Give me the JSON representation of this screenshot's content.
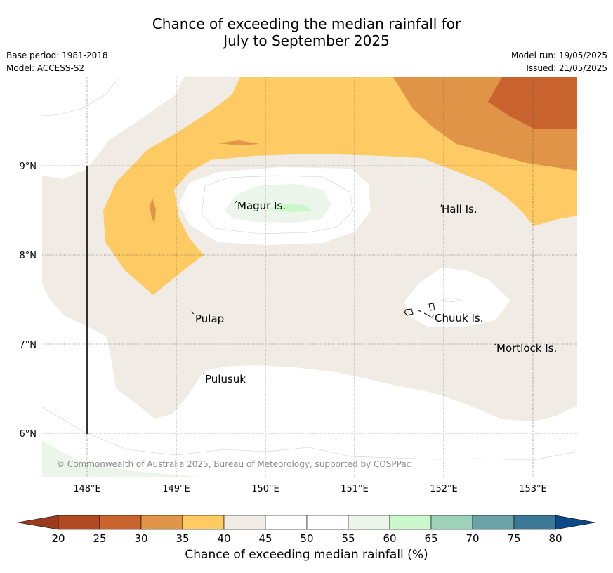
{
  "title": {
    "line1": "Chance of exceeding the median rainfall for",
    "line2": "July to September 2025"
  },
  "meta": {
    "base_period": "Base period: 1981-2018",
    "model": "Model: ACCESS-S2",
    "model_run": "Model run: 19/05/2025",
    "issued": "Issued: 21/05/2025"
  },
  "copyright": "© Commonwealth of Australia 2025, Bureau of Meteorology, supported by COSPPac",
  "axes": {
    "lon_ticks": [
      "148°E",
      "149°E",
      "150°E",
      "151°E",
      "152°E",
      "153°E"
    ],
    "lat_ticks": [
      "9°N",
      "8°N",
      "7°N",
      "6°N"
    ]
  },
  "places": [
    {
      "label": "Magur Is."
    },
    {
      "label": "Hall Is."
    },
    {
      "label": "Pulap"
    },
    {
      "label": "Chuuk Is."
    },
    {
      "label": "Mortlock Is."
    },
    {
      "label": "Pulusuk"
    }
  ],
  "colorbar": {
    "title": "Chance of exceeding median rainfall (%)",
    "ticks": [
      "20",
      "25",
      "30",
      "35",
      "40",
      "45",
      "50",
      "55",
      "60",
      "65",
      "70",
      "75",
      "80"
    ],
    "colors": [
      "#b04a22",
      "#c9642f",
      "#df9447",
      "#fdca64",
      "#f0ebe5",
      "#ffffff",
      "#ffffff",
      "#ebf5ea",
      "#cbf8cb",
      "#9ed1b9",
      "#6aa2a8",
      "#3b7896"
    ],
    "under_color": "#9a3b1e",
    "over_color": "#0b4a87"
  }
}
